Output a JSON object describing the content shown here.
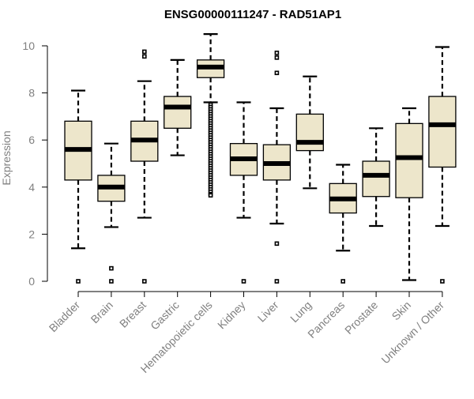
{
  "chart_data": {
    "type": "boxplot",
    "title": "ENSG00000111247 - RAD51AP1",
    "xlabel": "",
    "ylabel": "Expression",
    "ylim": [
      0,
      10.5
    ],
    "yticks": [
      0,
      2,
      4,
      6,
      8,
      10
    ],
    "grid": false,
    "colors": {
      "box_fill": "#ede6cb",
      "stroke": "#000000",
      "axis_text": "#808080"
    },
    "categories": [
      "Bladder",
      "Brain",
      "Breast",
      "Gastric",
      "Hematopoietic cells",
      "Kidney",
      "Liver",
      "Lung",
      "Pancreas",
      "Prostate",
      "Skin",
      "Unknown / Other"
    ],
    "series": [
      {
        "category": "Bladder",
        "min": 1.4,
        "q1": 4.3,
        "median": 5.6,
        "q3": 6.8,
        "max": 8.1,
        "outliers": [
          0
        ]
      },
      {
        "category": "Brain",
        "min": 2.3,
        "q1": 3.4,
        "median": 4.0,
        "q3": 4.5,
        "max": 5.85,
        "outliers": [
          0.55,
          0
        ]
      },
      {
        "category": "Breast",
        "min": 2.7,
        "q1": 5.1,
        "median": 6.0,
        "q3": 6.8,
        "max": 8.5,
        "outliers": [
          9.75,
          9.55,
          0
        ]
      },
      {
        "category": "Gastric",
        "min": 5.35,
        "q1": 6.5,
        "median": 7.4,
        "q3": 7.85,
        "max": 9.4,
        "outliers": []
      },
      {
        "category": "Hematopoietic cells",
        "min": 7.6,
        "q1": 8.65,
        "median": 9.1,
        "q3": 9.4,
        "max": 10.5,
        "outliers": [
          7.5,
          7.4,
          7.3,
          7.2,
          7.1,
          7.0,
          6.9,
          6.8,
          6.7,
          6.6,
          6.5,
          6.4,
          6.3,
          6.2,
          6.1,
          6.0,
          5.9,
          5.8,
          5.7,
          5.6,
          5.5,
          5.4,
          5.3,
          5.2,
          5.1,
          5.0,
          4.9,
          4.8,
          4.7,
          4.6,
          4.5,
          4.4,
          4.3,
          4.2,
          4.1,
          4.0,
          3.9,
          3.8,
          3.7,
          3.65
        ]
      },
      {
        "category": "Kidney",
        "min": 2.7,
        "q1": 4.5,
        "median": 5.2,
        "q3": 5.85,
        "max": 7.6,
        "outliers": [
          0
        ]
      },
      {
        "category": "Liver",
        "min": 2.45,
        "q1": 4.3,
        "median": 5.0,
        "q3": 5.8,
        "max": 7.35,
        "outliers": [
          9.7,
          9.5,
          8.85,
          1.6,
          0
        ]
      },
      {
        "category": "Lung",
        "min": 3.95,
        "q1": 5.55,
        "median": 5.9,
        "q3": 7.1,
        "max": 8.7,
        "outliers": []
      },
      {
        "category": "Pancreas",
        "min": 1.3,
        "q1": 2.9,
        "median": 3.5,
        "q3": 4.15,
        "max": 4.95,
        "outliers": [
          0
        ]
      },
      {
        "category": "Prostate",
        "min": 2.35,
        "q1": 3.6,
        "median": 4.5,
        "q3": 5.1,
        "max": 6.5,
        "outliers": []
      },
      {
        "category": "Skin",
        "min": 0.05,
        "q1": 3.55,
        "median": 5.25,
        "q3": 6.7,
        "max": 7.35,
        "outliers": []
      },
      {
        "category": "Unknown / Other",
        "min": 2.35,
        "q1": 4.85,
        "median": 6.65,
        "q3": 7.85,
        "max": 9.95,
        "outliers": [
          0
        ]
      }
    ]
  }
}
